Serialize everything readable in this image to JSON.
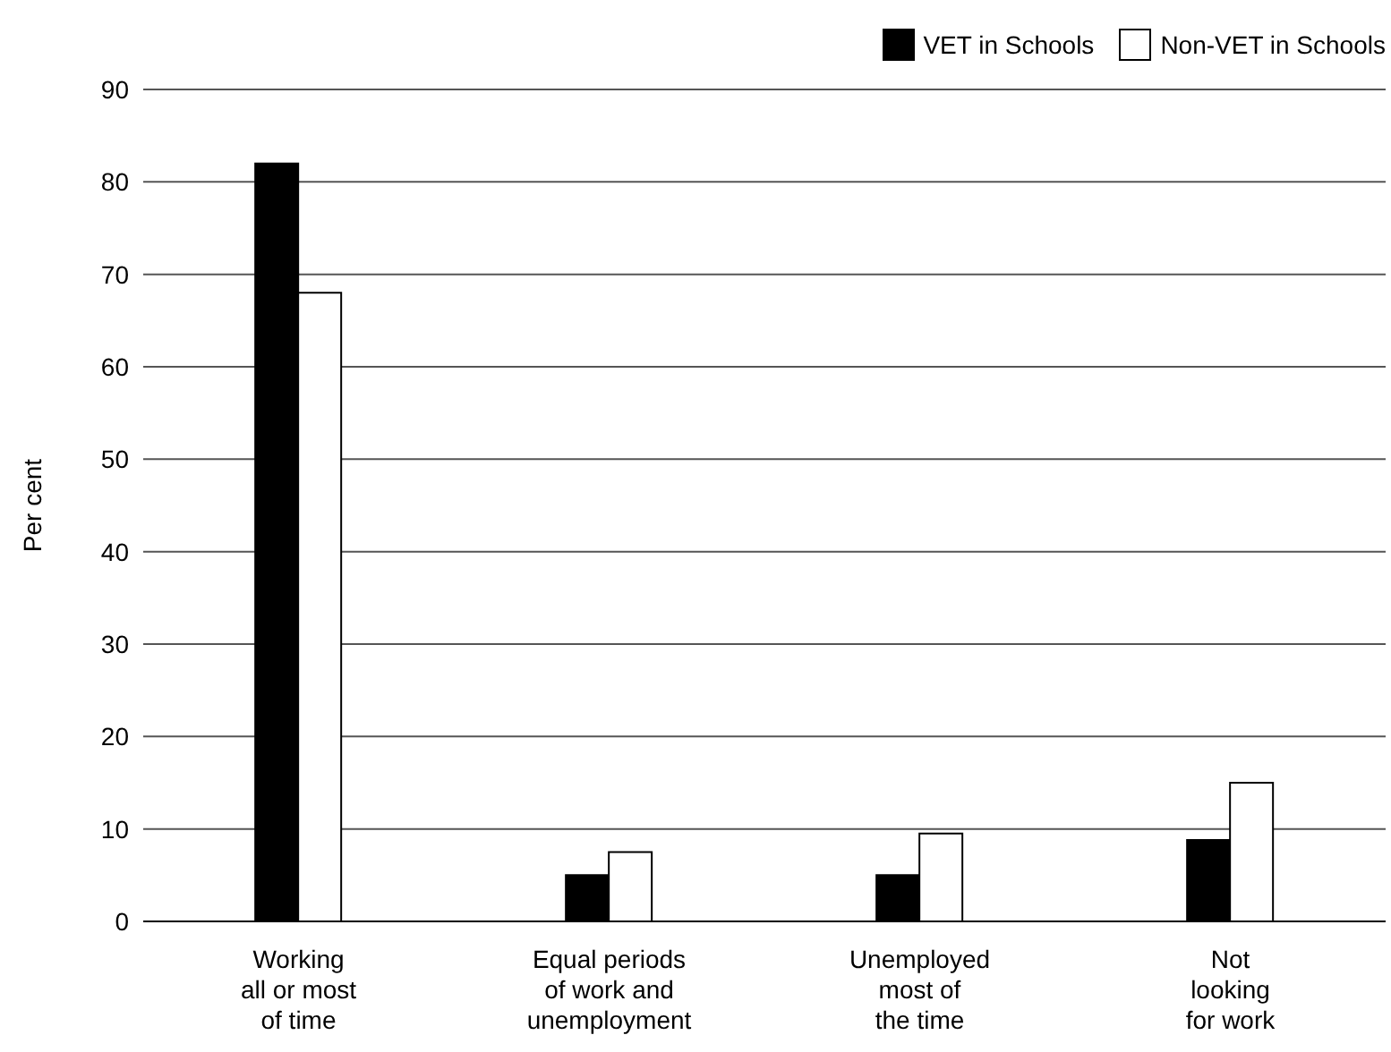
{
  "chart_data": {
    "type": "bar",
    "ylabel": "Per cent",
    "categories": [
      "Working\nall or most\nof time",
      "Equal periods\nof work and\nunemployment",
      "Unemployed\nmost of\nthe time",
      "Not\nlooking\nfor work"
    ],
    "series": [
      {
        "name": "VET in Schools",
        "color": "#000000",
        "values": [
          82,
          5,
          5,
          8.8
        ]
      },
      {
        "name": "Non-VET in Schools",
        "color": "#ffffff",
        "values": [
          68,
          7.5,
          9.5,
          15
        ]
      }
    ],
    "ylim": [
      0,
      90
    ],
    "yticks": [
      0,
      10,
      20,
      30,
      40,
      50,
      60,
      70,
      80,
      90
    ],
    "grid": "y",
    "legend": "top right"
  }
}
